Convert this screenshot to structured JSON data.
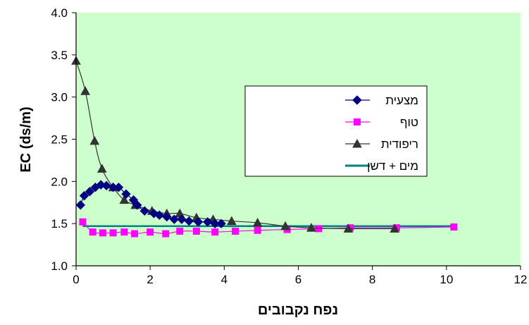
{
  "chart_data": {
    "type": "line",
    "title": "",
    "xlabel": "נפח נקבובים",
    "ylabel": "EC (ds/m)",
    "xlim": [
      0,
      12
    ],
    "ylim": [
      1.0,
      4.0
    ],
    "x_ticks": [
      "0",
      "2",
      "4",
      "6",
      "8",
      "10",
      "12"
    ],
    "y_ticks": [
      "1.0",
      "1.5",
      "2.0",
      "2.5",
      "3.0",
      "3.5",
      "4.0"
    ],
    "x_tick_values": [
      0,
      2,
      4,
      6,
      8,
      10,
      12
    ],
    "y_tick_values": [
      1.0,
      1.5,
      2.0,
      2.5,
      3.0,
      3.5,
      4.0
    ],
    "plot_background": "#ccffcc",
    "grid": false,
    "legend_position": "right",
    "series": [
      {
        "name": "מצעית",
        "color": "#000080",
        "marker": "diamond",
        "x": [
          0.12,
          0.22,
          0.37,
          0.52,
          0.67,
          0.82,
          1.0,
          1.15,
          1.35,
          1.55,
          1.65,
          1.85,
          2.1,
          2.25,
          2.45,
          2.65,
          2.85,
          3.05,
          3.3,
          3.55,
          3.75,
          3.92
        ],
        "y": [
          1.72,
          1.83,
          1.88,
          1.93,
          1.96,
          1.95,
          1.93,
          1.93,
          1.85,
          1.78,
          1.72,
          1.65,
          1.62,
          1.6,
          1.58,
          1.55,
          1.55,
          1.53,
          1.52,
          1.52,
          1.5,
          1.5
        ]
      },
      {
        "name": "טוף",
        "color": "#ff00ff",
        "marker": "square",
        "x": [
          0.18,
          0.45,
          0.72,
          1.0,
          1.3,
          1.58,
          2.0,
          2.42,
          2.8,
          3.25,
          3.75,
          4.3,
          4.9,
          5.7,
          6.55,
          7.4,
          8.65,
          10.2
        ],
        "y": [
          1.52,
          1.4,
          1.39,
          1.39,
          1.4,
          1.38,
          1.4,
          1.38,
          1.41,
          1.41,
          1.4,
          1.41,
          1.42,
          1.43,
          1.44,
          1.45,
          1.45,
          1.46
        ]
      },
      {
        "name": "ריפודית",
        "color": "#333333",
        "marker": "triangle",
        "x": [
          0.0,
          0.25,
          0.5,
          0.7,
          1.0,
          1.3,
          1.6,
          2.05,
          2.45,
          2.8,
          3.25,
          3.7,
          4.2,
          4.9,
          5.65,
          6.35,
          7.35,
          8.6
        ],
        "y": [
          3.43,
          3.07,
          2.48,
          2.15,
          1.93,
          1.78,
          1.72,
          1.65,
          1.62,
          1.62,
          1.57,
          1.55,
          1.53,
          1.51,
          1.47,
          1.45,
          1.44,
          1.44
        ]
      },
      {
        "name": "מים + דשן",
        "color": "#008080",
        "marker": "none",
        "x": [
          0.18,
          10.2
        ],
        "y": [
          1.47,
          1.47
        ]
      }
    ]
  }
}
